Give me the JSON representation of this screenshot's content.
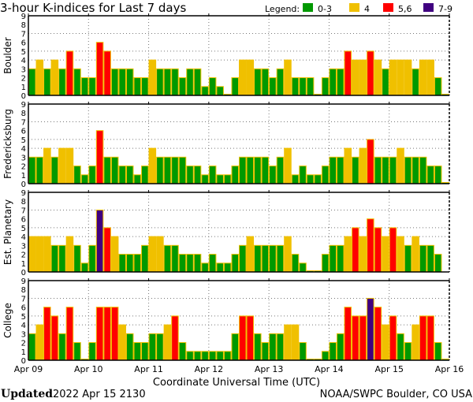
{
  "chart_data": {
    "type": "bar",
    "title": "3-hour K-indices for Last 7 days",
    "xlabel": "Coordinate Universal Time (UTC)",
    "ylim": [
      0,
      9
    ],
    "yticks": [
      "0",
      "1",
      "2",
      "3",
      "4",
      "5",
      "6",
      "7",
      "8",
      "9"
    ],
    "grid_y": [
      4,
      5,
      7
    ],
    "day_ticks": [
      "Apr 09",
      "Apr 10",
      "Apr 11",
      "Apr 12",
      "Apr 13",
      "Apr 14",
      "Apr 15",
      "Apr 16"
    ],
    "bars_per_day": 8,
    "legend": {
      "label": "Legend:",
      "placement": "top-right",
      "entries": [
        {
          "label": "0-3",
          "color": "#009900"
        },
        {
          "label": "4",
          "color": "#f0c000"
        },
        {
          "label": "5,6",
          "color": "#ff0000"
        },
        {
          "label": "7-9",
          "color": "#400080"
        }
      ]
    },
    "series": [
      {
        "name": "Boulder",
        "values": [
          3,
          4,
          3,
          4,
          3,
          5,
          3,
          2,
          2,
          6,
          5,
          3,
          3,
          3,
          2,
          2,
          4,
          3,
          3,
          3,
          2,
          3,
          3,
          1,
          2,
          1,
          0,
          2,
          4,
          4,
          3,
          3,
          2,
          3,
          4,
          2,
          2,
          2,
          0,
          2,
          3,
          3,
          5,
          4,
          4,
          5,
          4,
          3,
          4,
          4,
          4,
          3,
          4,
          4,
          2,
          0
        ]
      },
      {
        "name": "Fredericksburg",
        "values": [
          3,
          3,
          4,
          3,
          4,
          4,
          2,
          1,
          2,
          6,
          3,
          3,
          2,
          2,
          1,
          2,
          4,
          3,
          3,
          3,
          3,
          2,
          2,
          1,
          2,
          1,
          1,
          2,
          3,
          3,
          3,
          3,
          2,
          3,
          4,
          1,
          2,
          1,
          1,
          2,
          3,
          3,
          4,
          3,
          4,
          5,
          3,
          3,
          3,
          4,
          3,
          3,
          3,
          2,
          2,
          0
        ]
      },
      {
        "name": "Est. Planetary",
        "values": [
          4,
          4,
          4,
          3,
          3,
          4,
          3,
          1,
          3,
          7,
          5,
          4,
          2,
          2,
          2,
          3,
          4,
          4,
          3,
          3,
          2,
          2,
          2,
          1,
          2,
          1,
          1,
          2,
          3,
          4,
          3,
          3,
          3,
          3,
          4,
          2,
          1,
          0,
          0,
          2,
          3,
          3,
          4,
          5,
          4,
          6,
          5,
          4,
          5,
          4,
          3,
          4,
          3,
          3,
          2,
          null
        ]
      },
      {
        "name": "College",
        "values": [
          3,
          4,
          6,
          5,
          3,
          6,
          2,
          0,
          2,
          6,
          6,
          6,
          4,
          3,
          2,
          2,
          3,
          3,
          4,
          5,
          2,
          1,
          1,
          1,
          1,
          1,
          1,
          3,
          5,
          5,
          3,
          2,
          3,
          3,
          4,
          4,
          2,
          0,
          0,
          1,
          2,
          3,
          6,
          5,
          5,
          7,
          6,
          4,
          5,
          3,
          2,
          4,
          5,
          5,
          2,
          0
        ]
      }
    ]
  },
  "footer": {
    "updated_label": "Updated",
    "updated_value": "2022 Apr 15 2130",
    "credit": "NOAA/SWPC Boulder, CO USA"
  }
}
